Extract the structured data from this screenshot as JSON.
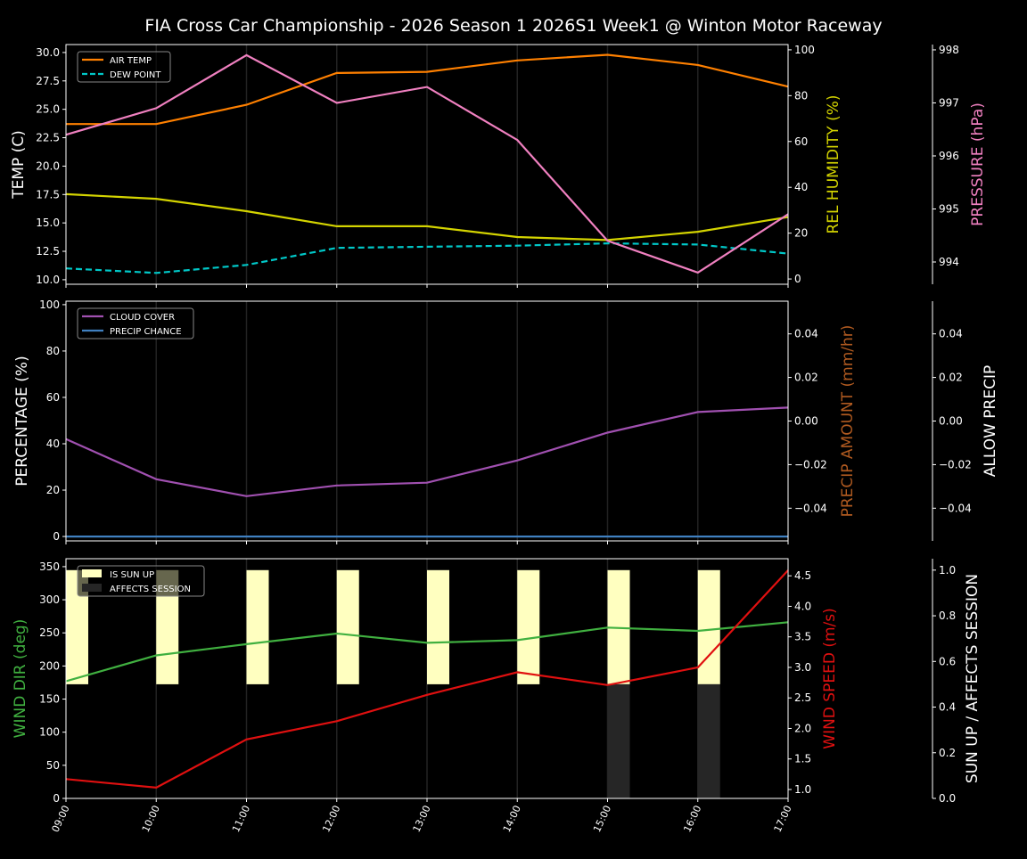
{
  "chart_data": {
    "title": "FIA Cross Car Championship - 2026 Season 1 2026S1 Week1 @ Winton Motor Raceway",
    "x": [
      "09:00",
      "10:00",
      "11:00",
      "12:00",
      "13:00",
      "14:00",
      "15:00",
      "16:00",
      "17:00"
    ],
    "panels": [
      {
        "type": "line",
        "legend_placement": "upper-left",
        "axes": [
          {
            "id": "temp",
            "side": "left",
            "label": "TEMP (C)",
            "label_color": "#ffffff",
            "ylim": [
              9.6,
              30.7
            ],
            "ticks": [
              10.0,
              12.5,
              15.0,
              17.5,
              20.0,
              22.5,
              25.0,
              27.5,
              30.0
            ],
            "tick_labels": [
              "10.0",
              "12.5",
              "15.0",
              "17.5",
              "20.0",
              "22.5",
              "25.0",
              "27.5",
              "30.0"
            ]
          },
          {
            "id": "hum",
            "side": "right",
            "label": "REL HUMIDITY (%)",
            "label_color": "#d4d400",
            "ylim": [
              -2.3,
              102.3
            ],
            "ticks": [
              0,
              20,
              40,
              60,
              80,
              100
            ],
            "tick_labels": [
              "0",
              "20",
              "40",
              "60",
              "80",
              "100"
            ]
          },
          {
            "id": "pres",
            "side": "right2",
            "label": "PRESSURE (hPa)",
            "label_color": "#f080c0",
            "ylim": [
              993.58,
              998.1
            ],
            "ticks": [
              994,
              995,
              996,
              997,
              998
            ],
            "tick_labels": [
              "994",
              "995",
              "996",
              "997",
              "998"
            ]
          }
        ],
        "series": [
          {
            "name": "AIR TEMP",
            "axis": "temp",
            "color": "#ff8000",
            "dashed": false,
            "values": [
              23.7,
              23.7,
              25.4,
              28.2,
              28.3,
              29.3,
              29.8,
              28.9,
              27.0
            ]
          },
          {
            "name": "DEW POINT",
            "axis": "temp",
            "color": "#00c8c8",
            "dashed": true,
            "values": [
              11.0,
              10.6,
              11.3,
              12.8,
              12.9,
              13.0,
              13.2,
              13.1,
              12.3
            ]
          },
          {
            "axis": "hum",
            "color": "#d4d400",
            "dashed": false,
            "values": [
              37,
              35,
              29.6,
              23,
              23,
              18.3,
              17,
              20.6,
              27
            ]
          },
          {
            "axis": "pres",
            "color": "#f080c0",
            "dashed": false,
            "values": [
              996.4,
              996.9,
              997.9,
              997.0,
              997.3,
              996.3,
              994.4,
              993.8,
              994.9
            ]
          }
        ],
        "legend": [
          "AIR TEMP",
          "DEW POINT"
        ]
      },
      {
        "type": "line",
        "legend_placement": "upper-left",
        "axes": [
          {
            "id": "pct",
            "side": "left",
            "label": "PERCENTAGE (%)",
            "label_color": "#ffffff",
            "ylim": [
              -1.9,
              101.5
            ],
            "ticks": [
              0,
              20,
              40,
              60,
              80,
              100
            ],
            "tick_labels": [
              "0",
              "20",
              "40",
              "60",
              "80",
              "100"
            ]
          },
          {
            "id": "amt",
            "side": "right",
            "label": "PRECIP AMOUNT (mm/hr)",
            "label_color": "#b05a20",
            "ylim": [
              -0.055,
              0.055
            ],
            "ticks": [
              -0.04,
              -0.02,
              0,
              0.02,
              0.04
            ],
            "tick_labels": [
              "−0.04",
              "−0.02",
              "0.00",
              "0.02",
              "0.04"
            ]
          },
          {
            "id": "allow",
            "side": "right2",
            "label": "ALLOW PRECIP",
            "label_color": "#ffffff",
            "ylim": [
              -0.055,
              0.055
            ],
            "ticks": [
              -0.04,
              -0.02,
              0,
              0.02,
              0.04
            ],
            "tick_labels": [
              "−0.04",
              "−0.02",
              "0.00",
              "0.02",
              "0.04"
            ]
          }
        ],
        "series": [
          {
            "name": "CLOUD COVER",
            "axis": "pct",
            "color": "#a050b0",
            "dashed": false,
            "values": [
              42,
              24.7,
              17.4,
              22,
              23.2,
              32.8,
              44.8,
              53.7,
              55.6
            ]
          },
          {
            "name": "PRECIP CHANCE",
            "axis": "pct",
            "color": "#4080c0",
            "dashed": false,
            "values": [
              0,
              0,
              0,
              0,
              0,
              0,
              0,
              0,
              0
            ]
          }
        ],
        "legend": [
          "CLOUD COVER",
          "PRECIP CHANCE"
        ]
      },
      {
        "type": "line",
        "legend_placement": "upper-left",
        "axes": [
          {
            "id": "dir",
            "side": "left",
            "label": "WIND DIR (deg)",
            "label_color": "#40b040",
            "ylim": [
              0,
              362
            ],
            "ticks": [
              0,
              50,
              100,
              150,
              200,
              250,
              300,
              350
            ],
            "tick_labels": [
              "0",
              "50",
              "100",
              "150",
              "200",
              "250",
              "300",
              "350"
            ]
          },
          {
            "id": "spd",
            "side": "right",
            "label": "WIND SPEED (m/s)",
            "label_color": "#e01010",
            "ylim": [
              0.854,
              4.78
            ],
            "ticks": [
              1.0,
              1.5,
              2.0,
              2.5,
              3.0,
              3.5,
              4.0,
              4.5
            ],
            "tick_labels": [
              "1.0",
              "1.5",
              "2.0",
              "2.5",
              "3.0",
              "3.5",
              "4.0",
              "4.5"
            ]
          },
          {
            "id": "sun",
            "side": "right2",
            "label": "SUN UP / AFFECTS SESSION",
            "label_color": "#ffffff",
            "ylim": [
              0,
              1.05
            ],
            "ticks": [
              0,
              0.2,
              0.4,
              0.6,
              0.8,
              1.0
            ],
            "tick_labels": [
              "0.0",
              "0.2",
              "0.4",
              "0.6",
              "0.8",
              "1.0"
            ]
          }
        ],
        "bars": {
          "sun_up": {
            "name": "IS SUN UP",
            "color": "#ffffc0",
            "values": [
              1,
              1,
              1,
              1,
              1,
              1,
              1,
              1
            ]
          },
          "affects_session": {
            "name": "AFFECTS SESSION",
            "color": "#262626",
            "values": [
              0,
              0,
              0,
              0,
              0,
              0,
              1,
              1
            ]
          }
        },
        "series": [
          {
            "axis": "dir",
            "color": "#40b040",
            "dashed": false,
            "values": [
              177,
              216,
              233,
              249,
              235,
              239,
              258,
              253,
              266
            ]
          },
          {
            "axis": "spd",
            "color": "#e01010",
            "dashed": false,
            "values": [
              1.17,
              1.03,
              1.82,
              2.12,
              2.55,
              2.92,
              2.71,
              3.0,
              4.59
            ]
          }
        ],
        "legend": [
          "IS SUN UP",
          "AFFECTS SESSION"
        ]
      }
    ]
  }
}
